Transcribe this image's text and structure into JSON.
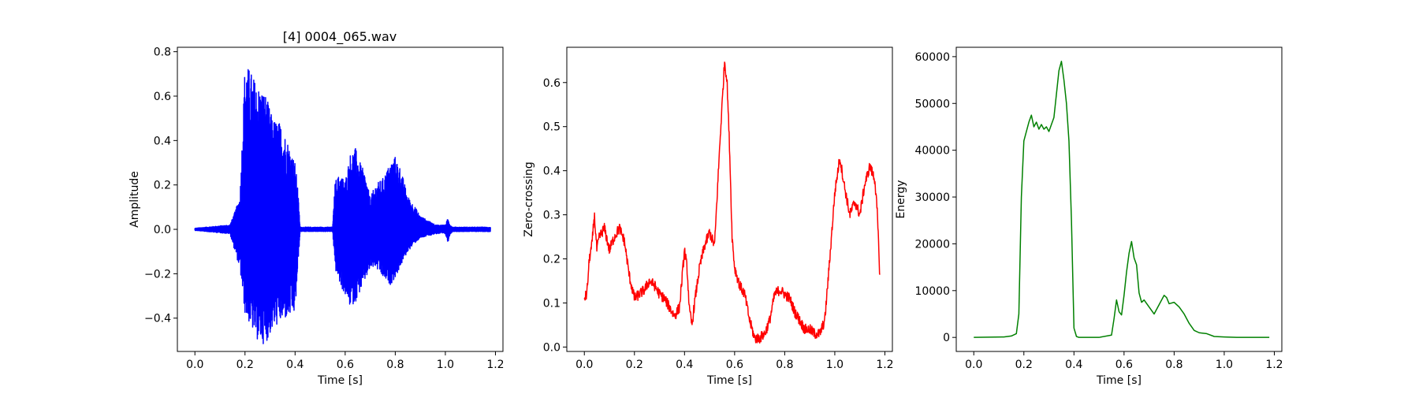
{
  "chart_data": [
    {
      "type": "line",
      "title": "[4] 0004_065.wav",
      "xlabel": "Time [s]",
      "ylabel": "Amplitude",
      "xlim": [
        -0.07,
        1.23
      ],
      "ylim": [
        -0.55,
        0.82
      ],
      "xticks": [
        0.0,
        0.2,
        0.4,
        0.6,
        0.8,
        1.0,
        1.2
      ],
      "xtick_labels": [
        "0.0",
        "0.2",
        "0.4",
        "0.6",
        "0.8",
        "1.0",
        "1.2"
      ],
      "yticks": [
        -0.4,
        -0.2,
        0.0,
        0.2,
        0.4,
        0.6,
        0.8
      ],
      "ytick_labels": [
        "−0.4",
        "−0.2",
        "0.0",
        "0.2",
        "0.4",
        "0.6",
        "0.8"
      ],
      "color": "#0000ff",
      "signal_kind": "waveform",
      "envelope": {
        "x": [
          0.0,
          0.14,
          0.16,
          0.18,
          0.2,
          0.22,
          0.25,
          0.28,
          0.31,
          0.34,
          0.37,
          0.4,
          0.41,
          0.42,
          0.55,
          0.56,
          0.58,
          0.6,
          0.62,
          0.64,
          0.66,
          0.68,
          0.7,
          0.72,
          0.75,
          0.78,
          0.8,
          0.82,
          0.85,
          0.88,
          0.9,
          0.93,
          0.96,
          1.0,
          1.01,
          1.02,
          1.03,
          1.18
        ],
        "pos": [
          0.005,
          0.02,
          0.08,
          0.15,
          0.75,
          0.72,
          0.65,
          0.62,
          0.5,
          0.48,
          0.4,
          0.3,
          0.2,
          0.01,
          0.01,
          0.22,
          0.25,
          0.22,
          0.34,
          0.37,
          0.3,
          0.25,
          0.14,
          0.2,
          0.23,
          0.3,
          0.33,
          0.28,
          0.15,
          0.1,
          0.06,
          0.04,
          0.02,
          0.02,
          0.05,
          0.02,
          0.01,
          0.01
        ],
        "neg": [
          -0.005,
          -0.02,
          -0.1,
          -0.18,
          -0.38,
          -0.43,
          -0.5,
          -0.52,
          -0.45,
          -0.42,
          -0.4,
          -0.38,
          -0.2,
          -0.01,
          -0.01,
          -0.18,
          -0.25,
          -0.3,
          -0.35,
          -0.33,
          -0.28,
          -0.23,
          -0.18,
          -0.17,
          -0.22,
          -0.25,
          -0.22,
          -0.17,
          -0.1,
          -0.06,
          -0.04,
          -0.03,
          -0.02,
          -0.02,
          -0.06,
          -0.02,
          -0.01,
          -0.01
        ]
      }
    },
    {
      "type": "line",
      "title": "",
      "xlabel": "Time [s]",
      "ylabel": "Zero-crossing",
      "xlim": [
        -0.07,
        1.23
      ],
      "ylim": [
        -0.01,
        0.68
      ],
      "xticks": [
        0.0,
        0.2,
        0.4,
        0.6,
        0.8,
        1.0,
        1.2
      ],
      "xtick_labels": [
        "0.0",
        "0.2",
        "0.4",
        "0.6",
        "0.8",
        "1.0",
        "1.2"
      ],
      "yticks": [
        0.0,
        0.1,
        0.2,
        0.3,
        0.4,
        0.5,
        0.6
      ],
      "ytick_labels": [
        "0.0",
        "0.1",
        "0.2",
        "0.3",
        "0.4",
        "0.5",
        "0.6"
      ],
      "color": "#ff0000",
      "noise": 0.012,
      "x": [
        0.0,
        0.01,
        0.02,
        0.03,
        0.04,
        0.05,
        0.06,
        0.08,
        0.1,
        0.12,
        0.14,
        0.16,
        0.18,
        0.2,
        0.22,
        0.24,
        0.26,
        0.28,
        0.3,
        0.32,
        0.34,
        0.36,
        0.38,
        0.4,
        0.41,
        0.42,
        0.43,
        0.44,
        0.46,
        0.48,
        0.5,
        0.52,
        0.54,
        0.55,
        0.56,
        0.57,
        0.58,
        0.59,
        0.6,
        0.62,
        0.64,
        0.66,
        0.68,
        0.7,
        0.72,
        0.74,
        0.76,
        0.78,
        0.8,
        0.82,
        0.84,
        0.86,
        0.88,
        0.9,
        0.92,
        0.94,
        0.96,
        0.98,
        1.0,
        1.02,
        1.04,
        1.06,
        1.08,
        1.1,
        1.12,
        1.14,
        1.16,
        1.17,
        1.18
      ],
      "y": [
        0.11,
        0.12,
        0.2,
        0.23,
        0.3,
        0.22,
        0.25,
        0.27,
        0.22,
        0.25,
        0.27,
        0.24,
        0.16,
        0.11,
        0.12,
        0.13,
        0.15,
        0.14,
        0.12,
        0.11,
        0.09,
        0.07,
        0.09,
        0.22,
        0.18,
        0.08,
        0.05,
        0.1,
        0.18,
        0.23,
        0.26,
        0.23,
        0.45,
        0.55,
        0.65,
        0.6,
        0.45,
        0.25,
        0.18,
        0.14,
        0.12,
        0.06,
        0.02,
        0.02,
        0.03,
        0.06,
        0.12,
        0.13,
        0.12,
        0.11,
        0.08,
        0.06,
        0.04,
        0.04,
        0.03,
        0.03,
        0.06,
        0.2,
        0.35,
        0.43,
        0.36,
        0.3,
        0.33,
        0.3,
        0.37,
        0.41,
        0.38,
        0.3,
        0.16
      ]
    },
    {
      "type": "line",
      "title": "",
      "xlabel": "Time [s]",
      "ylabel": "Energy",
      "xlim": [
        -0.07,
        1.23
      ],
      "ylim": [
        -3000,
        62000
      ],
      "xticks": [
        0.0,
        0.2,
        0.4,
        0.6,
        0.8,
        1.0,
        1.2
      ],
      "xtick_labels": [
        "0.0",
        "0.2",
        "0.4",
        "0.6",
        "0.8",
        "1.0",
        "1.2"
      ],
      "yticks": [
        0,
        10000,
        20000,
        30000,
        40000,
        50000,
        60000
      ],
      "ytick_labels": [
        "0",
        "10000",
        "20000",
        "30000",
        "40000",
        "50000",
        "60000"
      ],
      "color": "#008000",
      "x": [
        0.0,
        0.12,
        0.15,
        0.17,
        0.18,
        0.19,
        0.2,
        0.21,
        0.22,
        0.23,
        0.24,
        0.25,
        0.26,
        0.27,
        0.28,
        0.29,
        0.3,
        0.31,
        0.32,
        0.33,
        0.34,
        0.35,
        0.36,
        0.37,
        0.38,
        0.39,
        0.4,
        0.41,
        0.42,
        0.5,
        0.55,
        0.56,
        0.57,
        0.58,
        0.59,
        0.6,
        0.61,
        0.62,
        0.63,
        0.64,
        0.65,
        0.66,
        0.67,
        0.68,
        0.7,
        0.72,
        0.74,
        0.76,
        0.77,
        0.78,
        0.8,
        0.82,
        0.84,
        0.86,
        0.88,
        0.9,
        0.93,
        0.96,
        1.0,
        1.05,
        1.18
      ],
      "y": [
        0,
        100,
        300,
        800,
        5000,
        30000,
        42000,
        44000,
        46000,
        47500,
        45000,
        46000,
        44500,
        45500,
        44500,
        45000,
        44000,
        45500,
        47000,
        52000,
        57000,
        59000,
        55000,
        50000,
        42000,
        25000,
        2000,
        200,
        0,
        0,
        500,
        4000,
        8000,
        5500,
        4800,
        9000,
        14000,
        18000,
        20500,
        17000,
        15500,
        9500,
        7500,
        8000,
        6500,
        5000,
        7000,
        9000,
        8500,
        7200,
        7500,
        6500,
        5000,
        3000,
        1500,
        1000,
        800,
        200,
        100,
        0,
        0
      ]
    }
  ]
}
